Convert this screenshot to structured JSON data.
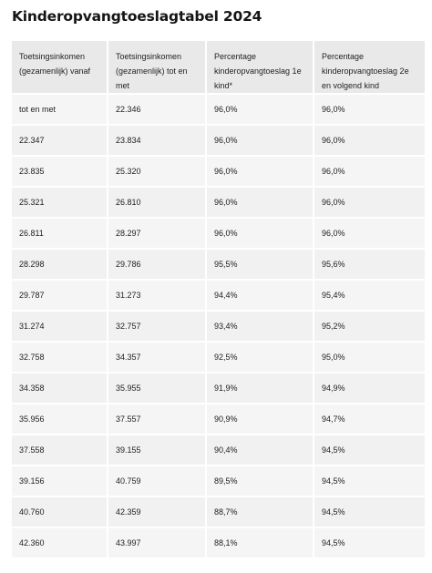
{
  "title": "Kinderopvangtoeslagtabel 2024",
  "table": {
    "headers": [
      "Toetsingsinkomen (gezamenlijk) vanaf",
      "Toetsingsinkomen (gezamenlijk) tot en met",
      "Percentage kinderopvangtoeslag 1e kind*",
      "Percentage kinderopvangtoeslag 2e en volgend kind"
    ],
    "rows": [
      [
        "tot en met",
        "22.346",
        "96,0%",
        "96,0%"
      ],
      [
        "22.347",
        "23.834",
        "96,0%",
        "96,0%"
      ],
      [
        "23.835",
        "25.320",
        "96,0%",
        "96,0%"
      ],
      [
        "25.321",
        "26.810",
        "96,0%",
        "96,0%"
      ],
      [
        "26.811",
        "28.297",
        "96,0%",
        "96,0%"
      ],
      [
        "28.298",
        "29.786",
        "95,5%",
        "95,6%"
      ],
      [
        "29.787",
        "31.273",
        "94,4%",
        "95,4%"
      ],
      [
        "31.274",
        "32.757",
        "93,4%",
        "95,2%"
      ],
      [
        "32.758",
        "34.357",
        "92,5%",
        "95,0%"
      ],
      [
        "34.358",
        "35.955",
        "91,9%",
        "94,9%"
      ],
      [
        "35.956",
        "37.557",
        "90,9%",
        "94,7%"
      ],
      [
        "37.558",
        "39.155",
        "90,4%",
        "94,5%"
      ],
      [
        "39.156",
        "40.759",
        "89,5%",
        "94,5%"
      ],
      [
        "40.760",
        "42.359",
        "88,7%",
        "94,5%"
      ],
      [
        "42.360",
        "43.997",
        "88,1%",
        "94,5%"
      ]
    ]
  }
}
